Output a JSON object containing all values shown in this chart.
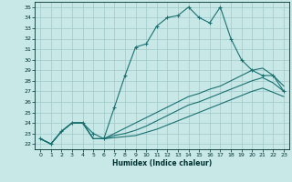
{
  "xlabel": "Humidex (Indice chaleur)",
  "background_color": "#c8e8e8",
  "grid_color": "#a0c8c8",
  "line_color": "#1a7070",
  "xlim": [
    -0.5,
    23.5
  ],
  "ylim": [
    21.5,
    35.5
  ],
  "xticks": [
    0,
    1,
    2,
    3,
    4,
    5,
    6,
    7,
    8,
    9,
    10,
    11,
    12,
    13,
    14,
    15,
    16,
    17,
    18,
    19,
    20,
    21,
    22,
    23
  ],
  "yticks": [
    22,
    23,
    24,
    25,
    26,
    27,
    28,
    29,
    30,
    31,
    32,
    33,
    34,
    35
  ],
  "line1": [
    22.5,
    22.0,
    23.2,
    24.0,
    24.0,
    23.0,
    22.5,
    25.5,
    28.5,
    31.2,
    31.5,
    33.2,
    34.0,
    34.2,
    35.0,
    34.0,
    33.5,
    35.0,
    32.0,
    30.0,
    29.0,
    28.5,
    28.5,
    27.0
  ],
  "line2": [
    22.5,
    22.0,
    23.2,
    24.0,
    24.0,
    22.5,
    22.5,
    23.0,
    23.5,
    24.0,
    24.5,
    25.0,
    25.5,
    26.0,
    26.5,
    26.8,
    27.2,
    27.5,
    28.0,
    28.5,
    29.0,
    29.2,
    28.5,
    27.5
  ],
  "line3": [
    22.5,
    22.0,
    23.2,
    24.0,
    24.0,
    22.5,
    22.5,
    22.8,
    23.0,
    23.3,
    23.7,
    24.2,
    24.7,
    25.2,
    25.7,
    26.0,
    26.4,
    26.8,
    27.2,
    27.6,
    28.0,
    28.3,
    27.8,
    27.0
  ],
  "line4": [
    22.5,
    22.0,
    23.2,
    24.0,
    24.0,
    22.5,
    22.5,
    22.6,
    22.7,
    22.8,
    23.1,
    23.4,
    23.8,
    24.2,
    24.6,
    25.0,
    25.4,
    25.8,
    26.2,
    26.6,
    27.0,
    27.3,
    26.9,
    26.5
  ]
}
